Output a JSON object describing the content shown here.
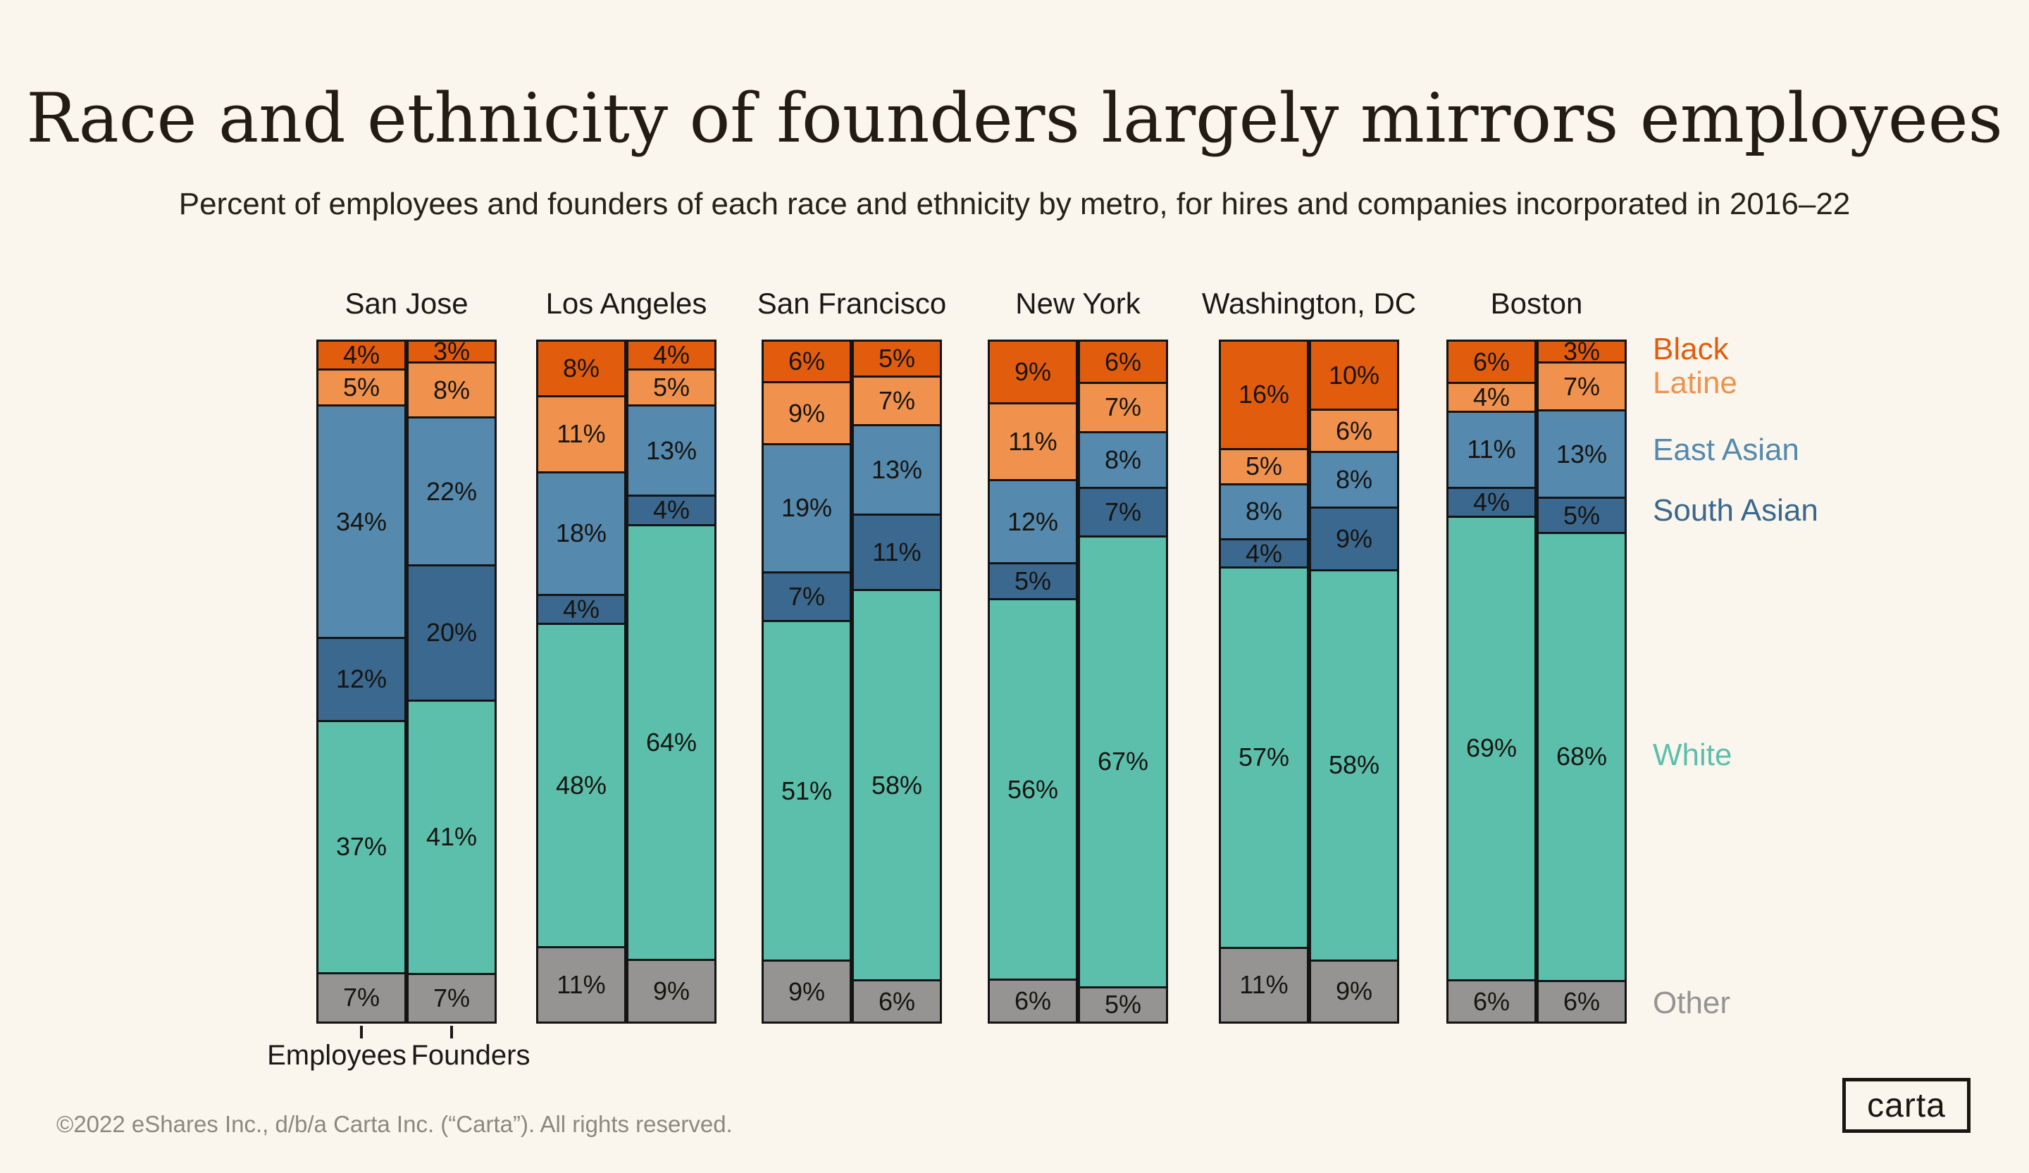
{
  "page": {
    "background_color": "#FAF6ED"
  },
  "header": {
    "title": "Race and ethnicity of founders largely mirrors employees",
    "subtitle": "Percent of employees and founders of each race and ethnicity by metro, for hires and companies incorporated in 2016–22"
  },
  "chart_data": {
    "type": "bar",
    "subtype": "paired-stacked-percent-columns",
    "unit": "%",
    "stack_order_top_to_bottom": [
      "Black",
      "Latine",
      "East Asian",
      "South Asian",
      "White",
      "Other"
    ],
    "series_colors": {
      "Black": "#E25C0E",
      "Latine": "#F0924E",
      "East Asian": "#5589AD",
      "South Asian": "#3A688E",
      "White": "#5CBFAC",
      "Other": "#959493"
    },
    "bar_labels": [
      "Employees",
      "Founders"
    ],
    "categories": [
      "San Jose",
      "Los Angeles",
      "San Francisco",
      "New York",
      "Washington, DC",
      "Boston"
    ],
    "metros": [
      {
        "name": "San Jose",
        "employees": [
          4,
          5,
          34,
          12,
          37,
          7
        ],
        "founders": [
          3,
          8,
          22,
          20,
          41,
          7
        ]
      },
      {
        "name": "Los Angeles",
        "employees": [
          8,
          11,
          18,
          4,
          48,
          11
        ],
        "founders": [
          4,
          5,
          13,
          4,
          64,
          9
        ]
      },
      {
        "name": "San Francisco",
        "employees": [
          6,
          9,
          19,
          7,
          51,
          9
        ],
        "founders": [
          5,
          7,
          13,
          11,
          58,
          6
        ]
      },
      {
        "name": "New York",
        "employees": [
          9,
          11,
          12,
          5,
          56,
          6
        ],
        "founders": [
          6,
          7,
          8,
          7,
          67,
          5
        ]
      },
      {
        "name": "Washington, DC",
        "employees": [
          16,
          5,
          8,
          4,
          57,
          11
        ],
        "founders": [
          10,
          6,
          8,
          9,
          58,
          9
        ]
      },
      {
        "name": "Boston",
        "employees": [
          6,
          4,
          11,
          4,
          69,
          6
        ],
        "founders": [
          3,
          7,
          13,
          5,
          68,
          6
        ]
      }
    ],
    "legend": [
      "Black",
      "Latine",
      "East Asian",
      "South Asian",
      "White",
      "Other"
    ],
    "legend_position": "right",
    "grid": false,
    "ylim": [
      0,
      100
    ]
  },
  "footer": {
    "copyright": "©2022 eShares Inc., d/b/a Carta Inc. (“Carta”). All rights reserved.",
    "logo_text": "carta"
  }
}
